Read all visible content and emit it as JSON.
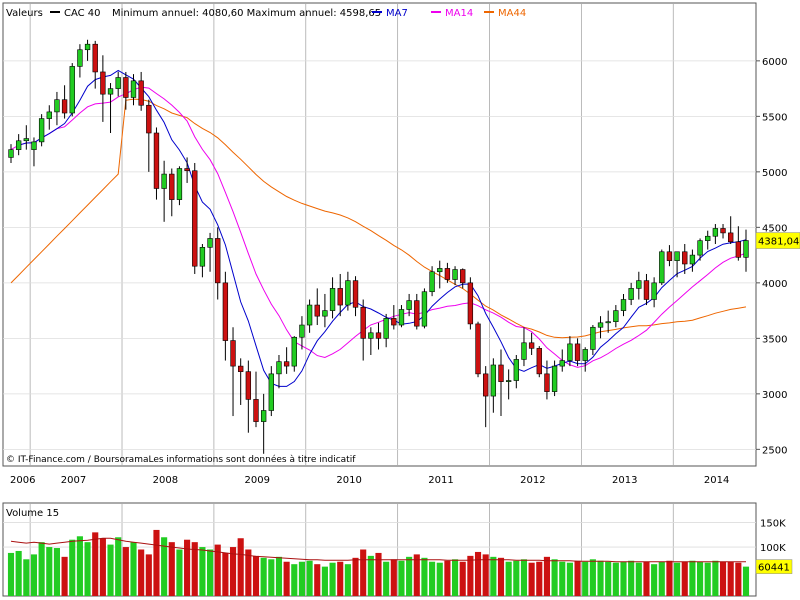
{
  "chart_data": {
    "type": "candlestick",
    "legend": {
      "label": "Valeurs",
      "series_name": "CAC 40",
      "stats": "Minimum annuel: 4080,60 Maximum annuel: 4598,65",
      "ma7": "MA7",
      "ma14": "MA14",
      "ma44": "MA44"
    },
    "colors": {
      "up": "#22cc22",
      "down": "#cc1111",
      "ma7": "#0000cc",
      "ma14": "#ee00ee",
      "ma44": "#ee6600",
      "grid": "#aaaaaa",
      "last_box": "#ffff00"
    },
    "copyright": "© IT-Finance.com / BoursoramaLes informations sont données à titre indicatif",
    "x_ticks": [
      "2006",
      "2007",
      "2008",
      "2009",
      "2010",
      "2011",
      "2012",
      "2013",
      "2014"
    ],
    "y_ticks": [
      2500,
      3000,
      3500,
      4000,
      4500,
      5000,
      5500,
      6000
    ],
    "ylim": [
      2350,
      6350
    ],
    "last_price_label": "4381,04",
    "candles": [
      [
        5130,
        5250,
        5080,
        5200
      ],
      [
        5200,
        5340,
        5150,
        5280
      ],
      [
        5280,
        5420,
        5200,
        5300
      ],
      [
        5200,
        5310,
        5050,
        5270
      ],
      [
        5270,
        5520,
        5230,
        5480
      ],
      [
        5480,
        5600,
        5380,
        5540
      ],
      [
        5540,
        5720,
        5420,
        5650
      ],
      [
        5650,
        5780,
        5480,
        5530
      ],
      [
        5530,
        5980,
        5500,
        5950
      ],
      [
        5950,
        6150,
        5850,
        6100
      ],
      [
        6100,
        6190,
        6000,
        6150
      ],
      [
        6150,
        6180,
        5750,
        5900
      ],
      [
        5900,
        6050,
        5450,
        5700
      ],
      [
        5700,
        5800,
        5350,
        5750
      ],
      [
        5750,
        5900,
        5680,
        5850
      ],
      [
        5850,
        5900,
        5560,
        5670
      ],
      [
        5670,
        5880,
        5600,
        5820
      ],
      [
        5820,
        5900,
        5550,
        5600
      ],
      [
        5600,
        5650,
        5000,
        5350
      ],
      [
        5350,
        5400,
        4750,
        4850
      ],
      [
        4850,
        5100,
        4550,
        4980
      ],
      [
        4980,
        5030,
        4600,
        4750
      ],
      [
        4750,
        5050,
        4700,
        5030
      ],
      [
        5030,
        5130,
        4900,
        5010
      ],
      [
        5010,
        5080,
        4080,
        4150
      ],
      [
        4150,
        4350,
        4050,
        4320
      ],
      [
        4320,
        4450,
        4100,
        4400
      ],
      [
        4400,
        4500,
        3850,
        4000
      ],
      [
        4000,
        4100,
        3300,
        3480
      ],
      [
        3480,
        3600,
        2800,
        3250
      ],
      [
        3250,
        3320,
        2900,
        3200
      ],
      [
        3200,
        3300,
        2650,
        2950
      ],
      [
        2950,
        3200,
        2700,
        2750
      ],
      [
        2750,
        3000,
        2460,
        2850
      ],
      [
        2850,
        3250,
        2800,
        3180
      ],
      [
        3180,
        3350,
        3050,
        3290
      ],
      [
        3290,
        3420,
        3180,
        3250
      ],
      [
        3250,
        3520,
        3200,
        3510
      ],
      [
        3510,
        3700,
        3400,
        3620
      ],
      [
        3620,
        3850,
        3550,
        3800
      ],
      [
        3800,
        3950,
        3620,
        3700
      ],
      [
        3700,
        3900,
        3600,
        3750
      ],
      [
        3750,
        4050,
        3680,
        3950
      ],
      [
        3950,
        4080,
        3700,
        3800
      ],
      [
        3800,
        4100,
        3750,
        4020
      ],
      [
        4020,
        4060,
        3700,
        3780
      ],
      [
        3780,
        3850,
        3300,
        3500
      ],
      [
        3500,
        3600,
        3350,
        3550
      ],
      [
        3550,
        3640,
        3400,
        3500
      ],
      [
        3500,
        3720,
        3420,
        3680
      ],
      [
        3680,
        3800,
        3580,
        3620
      ],
      [
        3620,
        3800,
        3600,
        3760
      ],
      [
        3760,
        3900,
        3700,
        3840
      ],
      [
        3840,
        3900,
        3580,
        3610
      ],
      [
        3610,
        3950,
        3590,
        3920
      ],
      [
        3920,
        4150,
        3880,
        4100
      ],
      [
        4100,
        4200,
        3950,
        4130
      ],
      [
        4130,
        4180,
        4000,
        4030
      ],
      [
        4030,
        4150,
        3980,
        4120
      ],
      [
        4120,
        4130,
        3950,
        4000
      ],
      [
        4000,
        4050,
        3580,
        3630
      ],
      [
        3630,
        3650,
        3150,
        3180
      ],
      [
        3180,
        3250,
        2700,
        2980
      ],
      [
        2980,
        3320,
        2830,
        3260
      ],
      [
        3260,
        3400,
        2800,
        3110
      ],
      [
        3110,
        3220,
        2950,
        3120
      ],
      [
        3120,
        3350,
        3050,
        3310
      ],
      [
        3310,
        3600,
        3250,
        3460
      ],
      [
        3460,
        3550,
        3350,
        3410
      ],
      [
        3410,
        3430,
        3150,
        3180
      ],
      [
        3180,
        3300,
        2950,
        3020
      ],
      [
        3020,
        3300,
        2980,
        3250
      ],
      [
        3250,
        3400,
        3200,
        3300
      ],
      [
        3300,
        3520,
        3250,
        3450
      ],
      [
        3450,
        3500,
        3250,
        3300
      ],
      [
        3300,
        3420,
        3200,
        3400
      ],
      [
        3400,
        3620,
        3350,
        3600
      ],
      [
        3600,
        3700,
        3500,
        3640
      ],
      [
        3640,
        3750,
        3550,
        3650
      ],
      [
        3650,
        3800,
        3600,
        3750
      ],
      [
        3750,
        3900,
        3700,
        3850
      ],
      [
        3850,
        4000,
        3800,
        3950
      ],
      [
        3950,
        4100,
        3850,
        4020
      ],
      [
        4020,
        4080,
        3800,
        3850
      ],
      [
        3850,
        4050,
        3780,
        4000
      ],
      [
        4000,
        4300,
        3980,
        4280
      ],
      [
        4280,
        4340,
        4150,
        4200
      ],
      [
        4200,
        4280,
        4050,
        4280
      ],
      [
        4280,
        4350,
        4080,
        4170
      ],
      [
        4170,
        4300,
        4100,
        4250
      ],
      [
        4250,
        4400,
        4200,
        4380
      ],
      [
        4380,
        4470,
        4300,
        4420
      ],
      [
        4420,
        4530,
        4350,
        4490
      ],
      [
        4490,
        4530,
        4400,
        4450
      ],
      [
        4450,
        4600,
        4350,
        4370
      ],
      [
        4370,
        4510,
        4200,
        4230
      ],
      [
        4230,
        4480,
        4100,
        4381
      ]
    ],
    "volume": {
      "label": "Volume 15",
      "y_ticks": [
        "100K",
        "150K"
      ],
      "y_tick_values": [
        100,
        150
      ],
      "ylim": [
        0,
        190
      ],
      "last_label": "60441",
      "values": [
        88,
        92,
        75,
        85,
        110,
        100,
        98,
        80,
        115,
        122,
        110,
        130,
        118,
        105,
        120,
        100,
        110,
        95,
        85,
        135,
        120,
        110,
        95,
        115,
        110,
        100,
        95,
        105,
        88,
        100,
        118,
        95,
        82,
        78,
        75,
        80,
        70,
        65,
        70,
        72,
        65,
        60,
        68,
        70,
        65,
        78,
        95,
        82,
        88,
        70,
        75,
        72,
        80,
        85,
        78,
        70,
        68,
        72,
        75,
        70,
        82,
        90,
        85,
        80,
        78,
        70,
        72,
        75,
        68,
        70,
        80,
        75,
        70,
        68,
        72,
        70,
        75,
        72,
        70,
        68,
        70,
        72,
        68,
        70,
        65,
        70,
        72,
        68,
        70,
        72,
        70,
        68,
        72,
        70,
        70,
        68,
        60
      ],
      "ma": [
        112,
        110,
        108,
        110,
        108,
        106,
        108,
        110,
        112,
        113,
        114,
        116,
        118,
        118,
        115,
        112,
        110,
        108,
        106,
        104,
        102,
        100,
        98,
        96,
        95,
        94,
        92,
        90,
        88,
        86,
        85,
        83,
        81,
        80,
        79,
        78,
        77,
        76,
        75,
        74,
        74,
        73,
        73,
        73,
        73,
        74,
        74,
        74,
        74,
        74,
        74,
        74,
        74,
        74,
        74,
        74,
        74,
        73,
        73,
        73,
        73,
        74,
        74,
        74,
        74,
        74,
        73,
        73,
        73,
        73,
        72,
        72,
        72,
        72,
        71,
        71,
        71,
        71,
        71,
        70,
        70,
        70,
        70,
        70,
        70,
        70,
        70,
        70,
        70,
        70,
        70,
        70,
        70,
        70,
        70,
        70,
        70
      ]
    }
  }
}
